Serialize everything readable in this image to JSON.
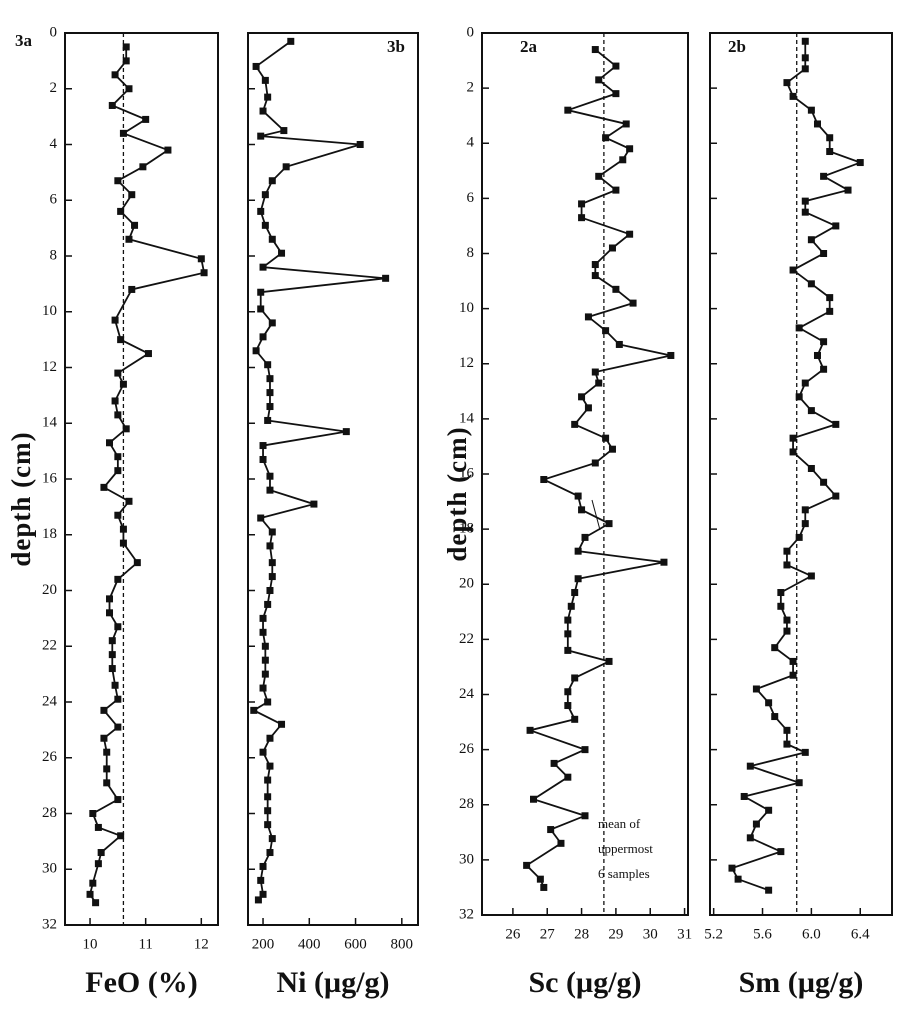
{
  "chart_data": [
    {
      "type": "line",
      "panel": "3a",
      "xlabel": "FeO (%)",
      "ylabel": "depth (cm)",
      "xlim": [
        9.55,
        12.3
      ],
      "xticks": [
        10,
        11,
        12
      ],
      "ylim": [
        32,
        0
      ],
      "yticks": [
        0,
        2,
        4,
        6,
        8,
        10,
        12,
        14,
        16,
        18,
        20,
        22,
        24,
        26,
        28,
        30,
        32
      ],
      "mean": 10.6,
      "x": [
        10.65,
        10.65,
        10.45,
        10.7,
        10.4,
        11.0,
        10.6,
        11.4,
        10.95,
        10.5,
        10.75,
        10.55,
        10.8,
        10.7,
        12.0,
        12.05,
        10.75,
        10.45,
        10.55,
        11.05,
        10.5,
        10.6,
        10.45,
        10.5,
        10.65,
        10.35,
        10.5,
        10.5,
        10.25,
        10.7,
        10.5,
        10.6,
        10.6,
        10.85,
        10.5,
        10.35,
        10.35,
        10.5,
        10.4,
        10.4,
        10.4,
        10.45,
        10.5,
        10.25,
        10.5,
        10.25,
        10.3,
        10.3,
        10.3,
        10.5,
        10.05,
        10.15,
        10.55,
        10.2,
        10.15,
        10.05,
        10.0,
        10.1
      ],
      "y": [
        0.5,
        1.0,
        1.5,
        2.0,
        2.6,
        3.1,
        3.6,
        4.2,
        4.8,
        5.3,
        5.8,
        6.4,
        6.9,
        7.4,
        8.1,
        8.6,
        9.2,
        10.3,
        11.0,
        11.5,
        12.2,
        12.6,
        13.2,
        13.7,
        14.2,
        14.7,
        15.2,
        15.7,
        16.3,
        16.8,
        17.3,
        17.8,
        18.3,
        19.0,
        19.6,
        20.3,
        20.8,
        21.3,
        21.8,
        22.3,
        22.8,
        23.4,
        23.9,
        24.3,
        24.9,
        25.3,
        25.8,
        26.4,
        26.9,
        27.5,
        28.0,
        28.5,
        28.8,
        29.4,
        29.8,
        30.5,
        30.9,
        31.2
      ]
    },
    {
      "type": "line",
      "panel": "3b",
      "xlabel": "Ni (µg/g)",
      "xlim": [
        135,
        870
      ],
      "xticks": [
        200,
        400,
        600,
        800
      ],
      "ylim": [
        32,
        0
      ],
      "mean": null,
      "x": [
        320,
        170,
        210,
        220,
        200,
        290,
        190,
        620,
        300,
        240,
        210,
        190,
        210,
        240,
        280,
        200,
        730,
        190,
        190,
        240,
        200,
        170,
        220,
        230,
        230,
        230,
        220,
        560,
        200,
        200,
        230,
        230,
        420,
        190,
        240,
        230,
        240,
        240,
        230,
        220,
        200,
        200,
        210,
        210,
        210,
        200,
        220,
        160,
        280,
        230,
        200,
        230,
        220,
        220,
        220,
        220,
        240,
        230,
        200,
        190,
        200,
        180
      ],
      "y": [
        0.3,
        1.2,
        1.7,
        2.3,
        2.8,
        3.5,
        3.7,
        4.0,
        4.8,
        5.3,
        5.8,
        6.4,
        6.9,
        7.4,
        7.9,
        8.4,
        8.8,
        9.3,
        9.9,
        10.4,
        10.9,
        11.4,
        11.9,
        12.4,
        12.9,
        13.4,
        13.9,
        14.3,
        14.8,
        15.3,
        15.9,
        16.4,
        16.9,
        17.4,
        17.9,
        18.4,
        19.0,
        19.5,
        20.0,
        20.5,
        21.0,
        21.5,
        22.0,
        22.5,
        23.0,
        23.5,
        24.0,
        24.3,
        24.8,
        25.3,
        25.8,
        26.3,
        26.8,
        27.4,
        27.9,
        28.4,
        28.9,
        29.4,
        29.9,
        30.4,
        30.9,
        31.1
      ]
    },
    {
      "type": "line",
      "panel": "2a",
      "xlabel": "Sc (µg/g)",
      "ylabel": "depth (cm)",
      "xlim": [
        25.1,
        31.1
      ],
      "xticks": [
        26,
        27,
        28,
        29,
        30,
        31
      ],
      "ylim": [
        32,
        0
      ],
      "yticks": [
        0,
        2,
        4,
        6,
        8,
        10,
        12,
        14,
        16,
        18,
        20,
        22,
        24,
        26,
        28,
        30,
        32
      ],
      "mean": 28.65,
      "annotation": [
        "mean of",
        "uppermost",
        "6 samples"
      ],
      "x": [
        28.4,
        29.0,
        28.5,
        29.0,
        27.6,
        29.3,
        28.7,
        29.4,
        29.2,
        28.5,
        29.0,
        28.0,
        28.0,
        29.4,
        28.9,
        28.4,
        28.4,
        29.0,
        29.5,
        28.2,
        28.7,
        29.1,
        30.6,
        28.4,
        28.5,
        28.0,
        28.2,
        27.8,
        28.7,
        28.9,
        28.4,
        26.9,
        27.9,
        28.0,
        28.8,
        28.1,
        27.9,
        30.4,
        27.9,
        27.8,
        27.7,
        27.6,
        27.6,
        27.6,
        28.8,
        27.8,
        27.6,
        27.6,
        27.8,
        26.5,
        28.1,
        27.2,
        27.6,
        26.6,
        28.1,
        27.1,
        27.4,
        26.4,
        26.8,
        26.9
      ],
      "y": [
        0.6,
        1.2,
        1.7,
        2.2,
        2.8,
        3.3,
        3.8,
        4.2,
        4.6,
        5.2,
        5.7,
        6.2,
        6.7,
        7.3,
        7.8,
        8.4,
        8.8,
        9.3,
        9.8,
        10.3,
        10.8,
        11.3,
        11.7,
        12.3,
        12.7,
        13.2,
        13.6,
        14.2,
        14.7,
        15.1,
        15.6,
        16.2,
        16.8,
        17.3,
        17.8,
        18.3,
        18.8,
        19.2,
        19.8,
        20.3,
        20.8,
        21.3,
        21.8,
        22.4,
        22.8,
        23.4,
        23.9,
        24.4,
        24.9,
        25.3,
        26.0,
        26.5,
        27.0,
        27.8,
        28.4,
        28.9,
        29.4,
        30.2,
        30.7,
        31.0
      ]
    },
    {
      "type": "line",
      "panel": "2b",
      "xlabel": "Sm (µg/g)",
      "xlim": [
        5.17,
        6.66
      ],
      "xticks": [
        5.2,
        5.6,
        {
          "value": 6,
          "label": "6.0"
        },
        6.4
      ],
      "ylim": [
        32,
        0
      ],
      "mean": 5.88,
      "x": [
        5.95,
        5.95,
        5.95,
        5.8,
        5.85,
        6.0,
        6.05,
        6.15,
        6.15,
        6.4,
        6.1,
        6.3,
        5.95,
        5.95,
        6.2,
        6.0,
        6.1,
        5.85,
        6.0,
        6.15,
        6.15,
        5.9,
        6.1,
        6.05,
        6.1,
        5.95,
        5.9,
        6.0,
        6.2,
        5.85,
        5.85,
        6.0,
        6.1,
        6.2,
        5.95,
        5.95,
        5.9,
        5.8,
        5.8,
        6.0,
        5.75,
        5.75,
        5.8,
        5.8,
        5.7,
        5.85,
        5.85,
        5.55,
        5.65,
        5.7,
        5.8,
        5.8,
        5.95,
        5.5,
        5.9,
        5.45,
        5.65,
        5.55,
        5.5,
        5.75,
        5.35,
        5.4,
        5.65
      ],
      "y": [
        0.3,
        0.9,
        1.3,
        1.8,
        2.3,
        2.8,
        3.3,
        3.8,
        4.3,
        4.7,
        5.2,
        5.7,
        6.1,
        6.5,
        7.0,
        7.5,
        8.0,
        8.6,
        9.1,
        9.6,
        10.1,
        10.7,
        11.2,
        11.7,
        12.2,
        12.7,
        13.2,
        13.7,
        14.2,
        14.7,
        15.2,
        15.8,
        16.3,
        16.8,
        17.3,
        17.8,
        18.3,
        18.8,
        19.3,
        19.7,
        20.3,
        20.8,
        21.3,
        21.7,
        22.3,
        22.8,
        23.3,
        23.8,
        24.3,
        24.8,
        25.3,
        25.8,
        26.1,
        26.6,
        27.2,
        27.7,
        28.2,
        28.7,
        29.2,
        29.7,
        30.3,
        30.7,
        31.1
      ]
    }
  ]
}
